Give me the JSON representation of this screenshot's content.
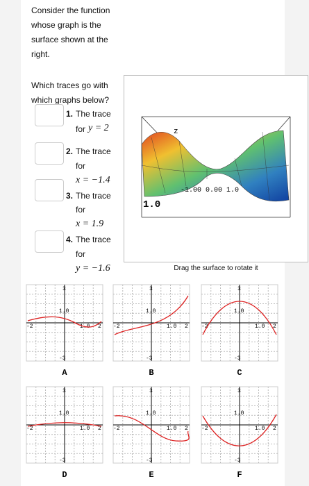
{
  "intro": "Consider the function whose graph is the surface shown at the right.",
  "question": "Which traces go with which graphs below?",
  "traces": [
    {
      "number": "1.",
      "text": "The trace",
      "for": "for",
      "equation": "y = 2"
    },
    {
      "number": "2.",
      "text": "The trace",
      "for": "for",
      "equation": "x = −1.4"
    },
    {
      "number": "3.",
      "text": "The trace",
      "for": "for",
      "equation": "x = 1.9"
    },
    {
      "number": "4.",
      "text": "The trace",
      "for": "for",
      "equation": "y = −1.6"
    }
  ],
  "surface": {
    "z_label": "z",
    "axis_ticks": "-1.00 0.00 1.0",
    "side_label": "1.0",
    "caption": "Drag the surface to rotate it"
  },
  "graph_axes": {
    "y_top": "3",
    "y_bottom": "-3",
    "x_left": "-2",
    "x_right": "2",
    "y_mark": "1.0",
    "x_mark": "1.0"
  },
  "graphs": [
    {
      "label": "A"
    },
    {
      "label": "B"
    },
    {
      "label": "C"
    },
    {
      "label": "D"
    },
    {
      "label": "E"
    },
    {
      "label": "F"
    }
  ]
}
